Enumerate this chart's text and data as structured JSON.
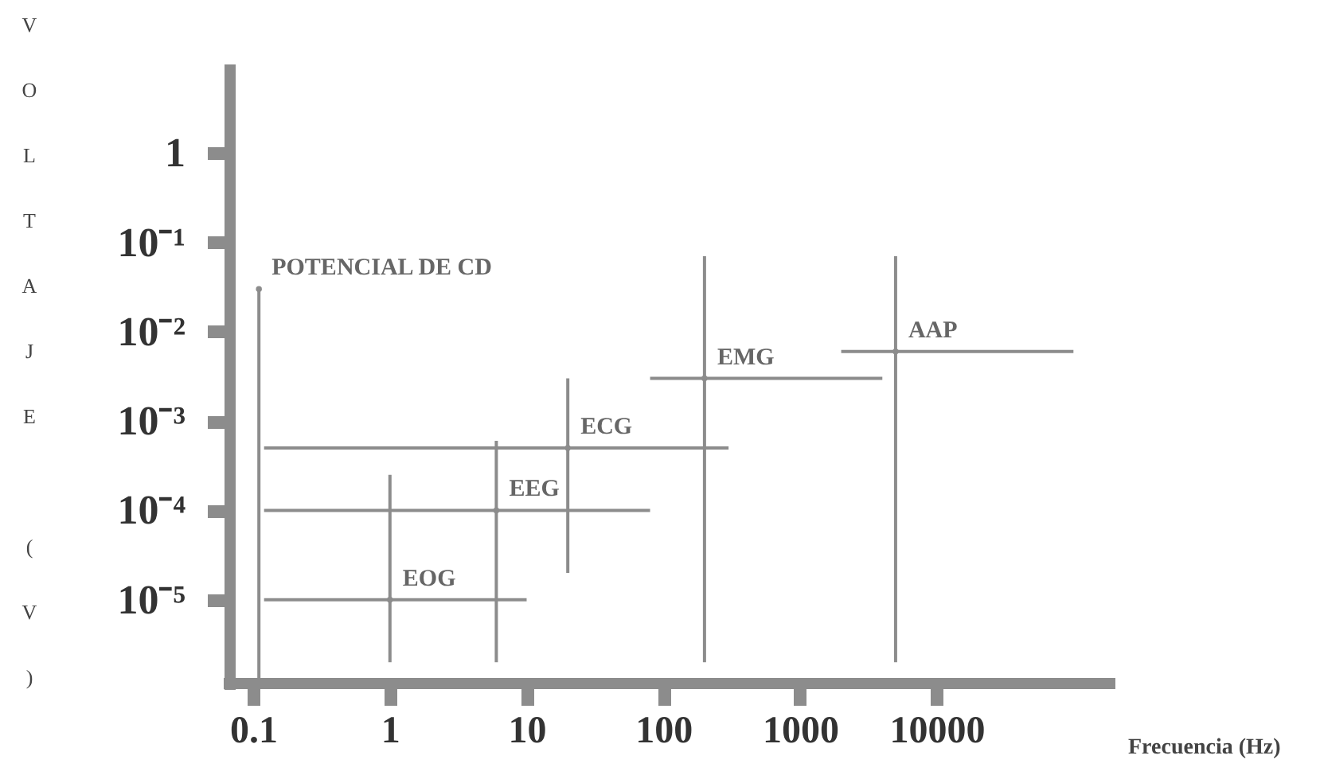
{
  "chart_data": {
    "type": "scatter",
    "xlabel": "Frecuencia (Hz)",
    "ylabel": "VOLTAJE (V)",
    "log": "xy",
    "marker": "circle",
    "grid": false,
    "xlim": [
      0.06,
      200000
    ],
    "xticks": [
      0.1,
      1,
      10,
      100,
      1000,
      10000
    ],
    "ylim": [
      1e-06,
      10
    ],
    "yticks": [
      1,
      {
        "value": 0.1,
        "label": "10⁻¹"
      },
      {
        "value": 0.01,
        "label": "10⁻²"
      },
      {
        "value": 0.001,
        "label": "10⁻³"
      },
      {
        "value": 0.0001,
        "label": "10⁻⁴"
      },
      {
        "value": 1e-05,
        "label": "10⁻⁵"
      }
    ],
    "series": [
      {
        "name": "POTENCIAL DE CD",
        "color": "#8c8c8c",
        "x": [
          0.11
        ],
        "values": [
          0.03
        ],
        "errors": [
          [
            1.3e-06,
            0.03
          ]
        ]
      },
      {
        "name": "EOG",
        "color": "#8c8c8c",
        "x": [
          1
        ],
        "values": [
          1e-05
        ],
        "errors": [
          [
            2e-06,
            0.00025
          ]
        ],
        "xerrors": [
          [
            0.12,
            10
          ]
        ]
      },
      {
        "name": "EEG",
        "color": "#8c8c8c",
        "x": [
          6
        ],
        "values": [
          0.0001
        ],
        "errors": [
          [
            2e-06,
            0.0006
          ]
        ],
        "xerrors": [
          [
            0.12,
            80
          ]
        ]
      },
      {
        "name": "ECG",
        "color": "#8c8c8c",
        "x": [
          20
        ],
        "values": [
          0.0005
        ],
        "errors": [
          [
            2e-05,
            0.003
          ]
        ],
        "xerrors": [
          [
            0.12,
            300
          ]
        ]
      },
      {
        "name": "EMG",
        "color": "#8c8c8c",
        "x": [
          200
        ],
        "values": [
          0.003
        ],
        "errors": [
          [
            2e-06,
            0.07
          ]
        ],
        "xerrors": [
          [
            80,
            4000
          ]
        ]
      },
      {
        "name": "AAP",
        "color": "#8c8c8c",
        "x": [
          5000
        ],
        "values": [
          0.006
        ],
        "errors": [
          [
            2e-06,
            0.07
          ]
        ],
        "xerrors": [
          [
            2000,
            100000
          ]
        ]
      }
    ]
  }
}
